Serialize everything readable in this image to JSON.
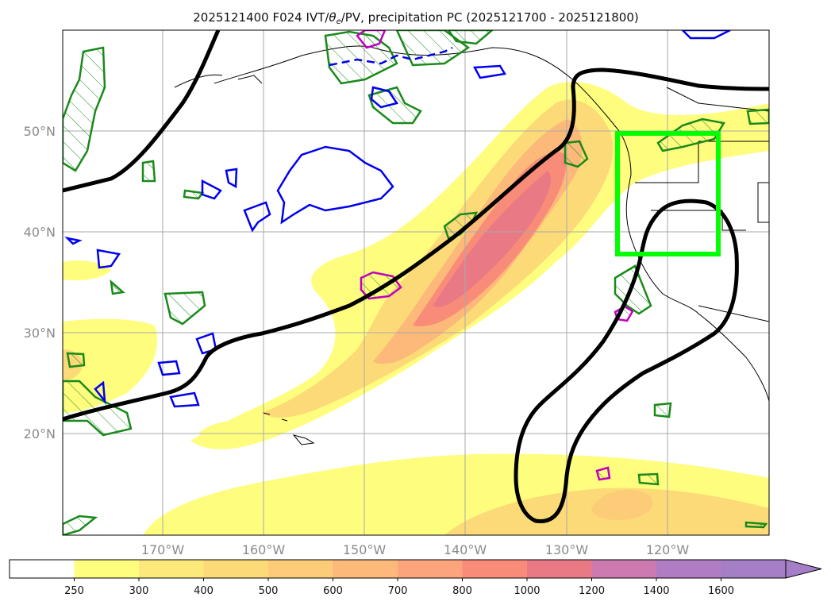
{
  "title": {
    "part1": "2025121400 F024 IVT/",
    "theta": "θ",
    "sub": "e",
    "part2": "/PV, precipitation PC (2025121700 - 2025121800)"
  },
  "map": {
    "lat_labels": [
      "50°N",
      "40°N",
      "30°N",
      "20°N"
    ],
    "lon_labels": [
      "170°W",
      "160°W",
      "150°W",
      "140°W",
      "130°W",
      "120°W"
    ],
    "grid": true,
    "highlight_box_color": "#00ff00"
  },
  "colorbar": {
    "levels": [
      "250",
      "300",
      "400",
      "500",
      "600",
      "700",
      "800",
      "1000",
      "1200",
      "1400",
      "1600"
    ],
    "colors": [
      "#ffffff",
      "#fefd7e",
      "#fde87a",
      "#fdda78",
      "#fdcc79",
      "#fcb97a",
      "#fca47b",
      "#f98c78",
      "#e97a85",
      "#cc7ab0",
      "#b07dc4",
      "#a47ec6"
    ],
    "extend": "max"
  }
}
